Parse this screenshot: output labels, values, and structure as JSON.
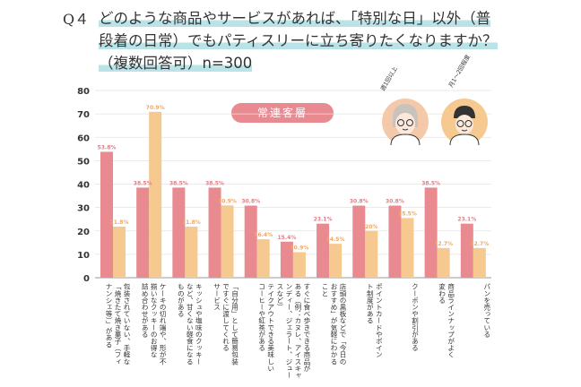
{
  "question": {
    "number": "Q４",
    "line1": "どのような商品やサービスがあれば、「特別な日」以外（普",
    "line2": "段着の日常）でもパティスリーに立ち寄りたくなりますか？",
    "line3": "（複数回答可）n=300"
  },
  "badge": "常連客層",
  "personas": [
    {
      "label": "週1回以上",
      "icon": "woman-avatar-icon",
      "bg": "#f4c9a9"
    },
    {
      "label": "月1〜2回程度",
      "icon": "man-avatar-icon",
      "bg": "#f5c98f"
    }
  ],
  "colors": {
    "series1": "#e88a90",
    "series2": "#f5c98f",
    "label1": "#e07f86",
    "label2": "#f0a860"
  },
  "chart_data": {
    "type": "bar",
    "ylim": [
      0,
      80
    ],
    "yticks": [
      0,
      10,
      20,
      30,
      40,
      50,
      60,
      70,
      80
    ],
    "categories": [
      "包装されていない、手軽な\n「焼きたて焼き菓子（フィ\nナンシェ等）」がある",
      "ケーキの切れ端や、形が不\n揃いなクッキーのお得な\n詰め合わせがある",
      "キッシュや塩味のクッキー\nなど、甘くない軽食になる\nものがある",
      "「自分用」として簡易包装\nですぐに渡してくれる\nサービス",
      "テイクアウトできる美味しい\nコーヒーや紅茶がある",
      "すぐに食べ歩きできる商品が\nある（例：カヌレ、アイスキャ\nンディー、ジェラート、ジュー\nスなど）",
      "店頭の黒板などで「今日の\nおすすめ」が気軽にわかる\nこと",
      "ポイントカードやポイン\nト制度がある",
      "クーポンや割引がある",
      "商品ラインナップがよく\n変わる",
      "パンを売っている"
    ],
    "series": [
      {
        "values": [
          53.8,
          38.5,
          38.5,
          38.5,
          30.8,
          15.4,
          23.1,
          30.8,
          30.8,
          38.5,
          23.1
        ],
        "labels": [
          "53.8%",
          "38.5%",
          "38.5%",
          "38.5%",
          "30.8%",
          "15.4%",
          "23.1%",
          "30.8%",
          "30.8%",
          "38.5%",
          "23.1%"
        ]
      },
      {
        "values": [
          21.8,
          70.9,
          21.8,
          30.9,
          16.4,
          10.9,
          14.5,
          20,
          25.5,
          12.7,
          12.7
        ],
        "labels": [
          "21.8%",
          "70.9%",
          "21.8%",
          "30.9%",
          "16.4%",
          "10.9%",
          "14.5%",
          "20%",
          "25.5%",
          "12.7%",
          "12.7%"
        ]
      }
    ]
  }
}
